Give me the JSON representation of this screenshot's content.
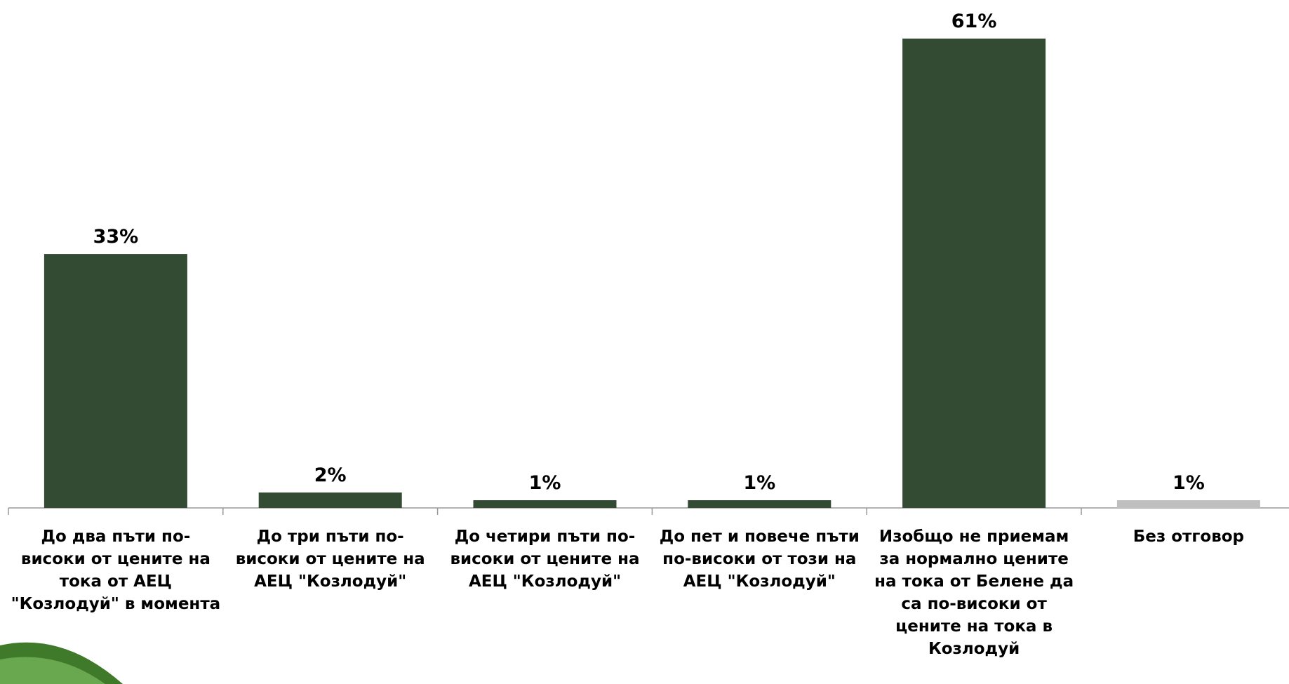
{
  "chart_data": {
    "type": "bar",
    "categories": [
      "До два пъти по-високи от цените на тока от АЕЦ \"Козлодуй\" в момента",
      "До три пъти по-високи от цените на АЕЦ \"Козлодуй\"",
      "До четири пъти по-високи от цените на АЕЦ \"Козлодуй\"",
      "До пет и повече пъти по-високи от този на АЕЦ \"Козлодуй\"",
      "Изобщо не приемам за нормално цените на тока от Белене да са по-високи от цените на тока в Козлодуй",
      "Без отговор"
    ],
    "values": [
      33,
      2,
      1,
      1,
      61,
      1
    ],
    "value_labels": [
      "33%",
      "2%",
      "1%",
      "1%",
      "61%",
      "1%"
    ],
    "colors": [
      "#324b32",
      "#324b32",
      "#324b32",
      "#324b32",
      "#324b32",
      "#bfbfbf"
    ]
  }
}
